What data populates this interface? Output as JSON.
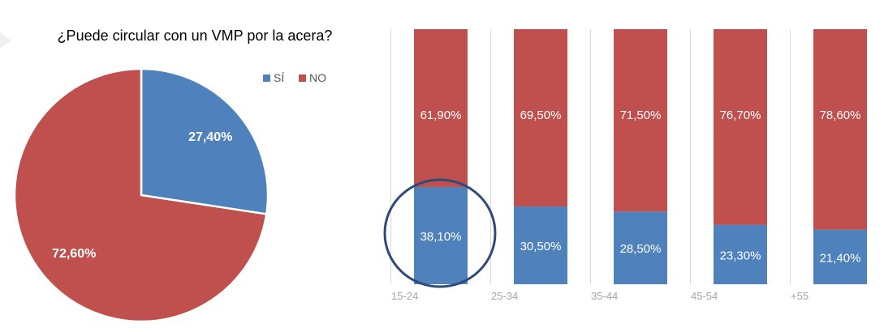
{
  "colors": {
    "si": "#4f81bd",
    "no": "#c0504d",
    "grid": "#d9d9d9",
    "highlight": "#2e4a7a",
    "axis_text": "#a6a6a6"
  },
  "chart_data": [
    {
      "type": "pie",
      "title": "¿Puede circular con un VMP por la acera?",
      "legend": {
        "position": "top-right",
        "entries": [
          "SÍ",
          "NO"
        ]
      },
      "slices": [
        {
          "label": "SÍ",
          "value": 27.4,
          "display": "27,40%"
        },
        {
          "label": "NO",
          "value": 72.6,
          "display": "72,60%"
        }
      ]
    },
    {
      "type": "bar",
      "stacked": true,
      "percent_stacked": true,
      "categories": [
        "15-24",
        "25-34",
        "35-44",
        "45-54",
        "+55"
      ],
      "series": [
        {
          "name": "SÍ",
          "values": [
            38.1,
            30.5,
            28.5,
            23.3,
            21.4
          ],
          "labels": [
            "38,10%",
            "30,50%",
            "28,50%",
            "23,30%",
            "21,40%"
          ]
        },
        {
          "name": "NO",
          "values": [
            61.9,
            69.5,
            71.5,
            76.7,
            78.6
          ],
          "labels": [
            "61,90%",
            "69,50%",
            "71,50%",
            "76,70%",
            "78,60%"
          ]
        }
      ],
      "ylim": [
        0,
        100
      ],
      "grid": true,
      "highlight_category": "15-24"
    }
  ]
}
